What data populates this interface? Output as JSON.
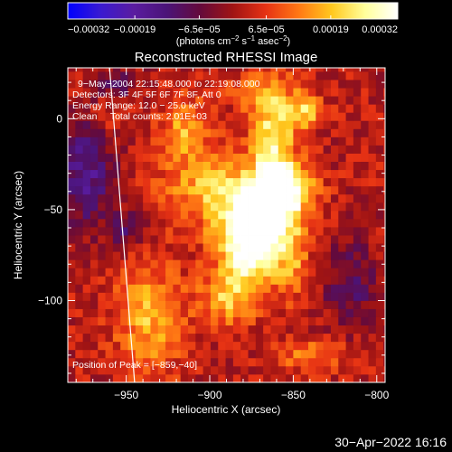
{
  "chart_data": {
    "type": "heatmap",
    "title": "Reconstructed RHESSI Image",
    "xlabel": "Heliocentric X (arcsec)",
    "ylabel": "Heliocentric Y (arcsec)",
    "xlim": [
      -985,
      -795
    ],
    "ylim": [
      -145,
      28
    ],
    "x_ticks": [
      -950,
      -900,
      -850,
      -800
    ],
    "x_tick_labels": [
      "−950",
      "−900",
      "−850",
      "−800"
    ],
    "y_ticks": [
      0,
      -50,
      -100
    ],
    "y_tick_labels": [
      "0",
      "−50",
      "−100"
    ],
    "colorbar": {
      "range": [
        -0.00032,
        0.00032
      ],
      "tick_values": [
        -0.00032,
        -0.00019,
        -6.5e-05,
        6.5e-05,
        0.00019,
        0.00032
      ],
      "tick_labels": [
        "−0.00032",
        "−0.00019",
        "−6.5e−05",
        "6.5e−05",
        "0.00019",
        "0.00032"
      ],
      "units_main": "(photons cm",
      "units_sup1": "−2",
      "units_mid1": " s",
      "units_sup2": "−1",
      "units_mid2": " asec",
      "units_sup3": "−2",
      "units_end": ")",
      "colors": [
        "#0000ff",
        "#3a1ad0",
        "#5a1ca0",
        "#4b1478",
        "#640a3c",
        "#a01414",
        "#e63214",
        "#ff7814",
        "#ffc81e",
        "#ffff9b",
        "#ffffff"
      ]
    },
    "annotations": {
      "time_range": "9−May−2004 22:15:48.000 to 22:19:08.000",
      "detectors": "Detectors: 3F 4F 5F 6F 7F 8F, Att 0",
      "energy": "Energy Range: 12.0 − 25.0 keV",
      "clean": "Clean     Total counts: 2.01E+03",
      "peak": "Position of Peak = [−859,−40]"
    },
    "peak": [
      -859,
      -40
    ],
    "limb_line": [
      [
        -960,
        28
      ],
      [
        -945,
        -145
      ]
    ],
    "sources": [
      {
        "x": -857,
        "y": -38,
        "sx": 12,
        "sy": 9,
        "amp": 1.0
      },
      {
        "x": -868,
        "y": -55,
        "sx": 15,
        "sy": 14,
        "amp": 0.85
      },
      {
        "x": -876,
        "y": -72,
        "sx": 14,
        "sy": 16,
        "amp": 0.8
      },
      {
        "x": -862,
        "y": -8,
        "sx": 9,
        "sy": 22,
        "amp": 0.72
      },
      {
        "x": -843,
        "y": 5,
        "sx": 7,
        "sy": 7,
        "amp": 0.6
      },
      {
        "x": -900,
        "y": -38,
        "sx": 20,
        "sy": 14,
        "amp": 0.5
      },
      {
        "x": -915,
        "y": -5,
        "sx": 10,
        "sy": 12,
        "amp": 0.45
      },
      {
        "x": -936,
        "y": -110,
        "sx": 14,
        "sy": 22,
        "amp": 0.5
      },
      {
        "x": -890,
        "y": -100,
        "sx": 12,
        "sy": 10,
        "amp": 0.45
      },
      {
        "x": -838,
        "y": -130,
        "sx": 16,
        "sy": 6,
        "amp": 0.35
      },
      {
        "x": -878,
        "y": 15,
        "sx": 8,
        "sy": 6,
        "amp": 0.35
      },
      {
        "x": -850,
        "y": -80,
        "sx": 6,
        "sy": 14,
        "amp": 0.3
      },
      {
        "x": -955,
        "y": 8,
        "sx": 10,
        "sy": 10,
        "amp": 0.25
      }
    ],
    "negatives": [
      {
        "x": -975,
        "y": -30,
        "sx": 12,
        "sy": 20,
        "amp": 0.55
      },
      {
        "x": -955,
        "y": 18,
        "sx": 10,
        "sy": 8,
        "amp": 0.45
      },
      {
        "x": -950,
        "y": -60,
        "sx": 8,
        "sy": 8,
        "amp": 0.35
      },
      {
        "x": -815,
        "y": -90,
        "sx": 12,
        "sy": 18,
        "amp": 0.35
      }
    ]
  },
  "footer": {
    "timestamp": "30−Apr−2022 16:16"
  }
}
